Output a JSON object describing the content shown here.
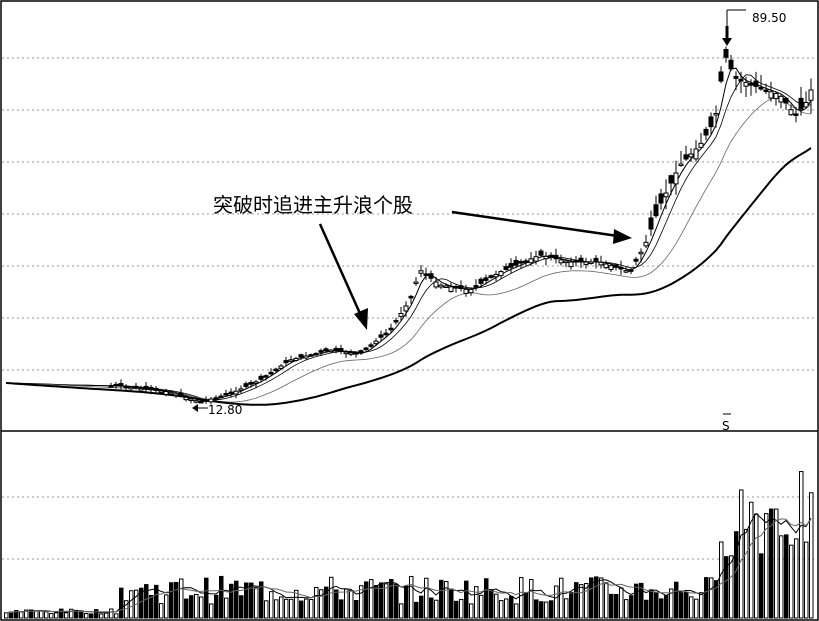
{
  "chart_data": {
    "type": "candlestick",
    "title": "",
    "annotation": "突破时追进主升浪个股",
    "high_label": "89.50",
    "low_label": "12.80",
    "marker": "S",
    "price_range": [
      10,
      92
    ],
    "grid": true,
    "volume_panel": true,
    "moving_averages": 4
  }
}
